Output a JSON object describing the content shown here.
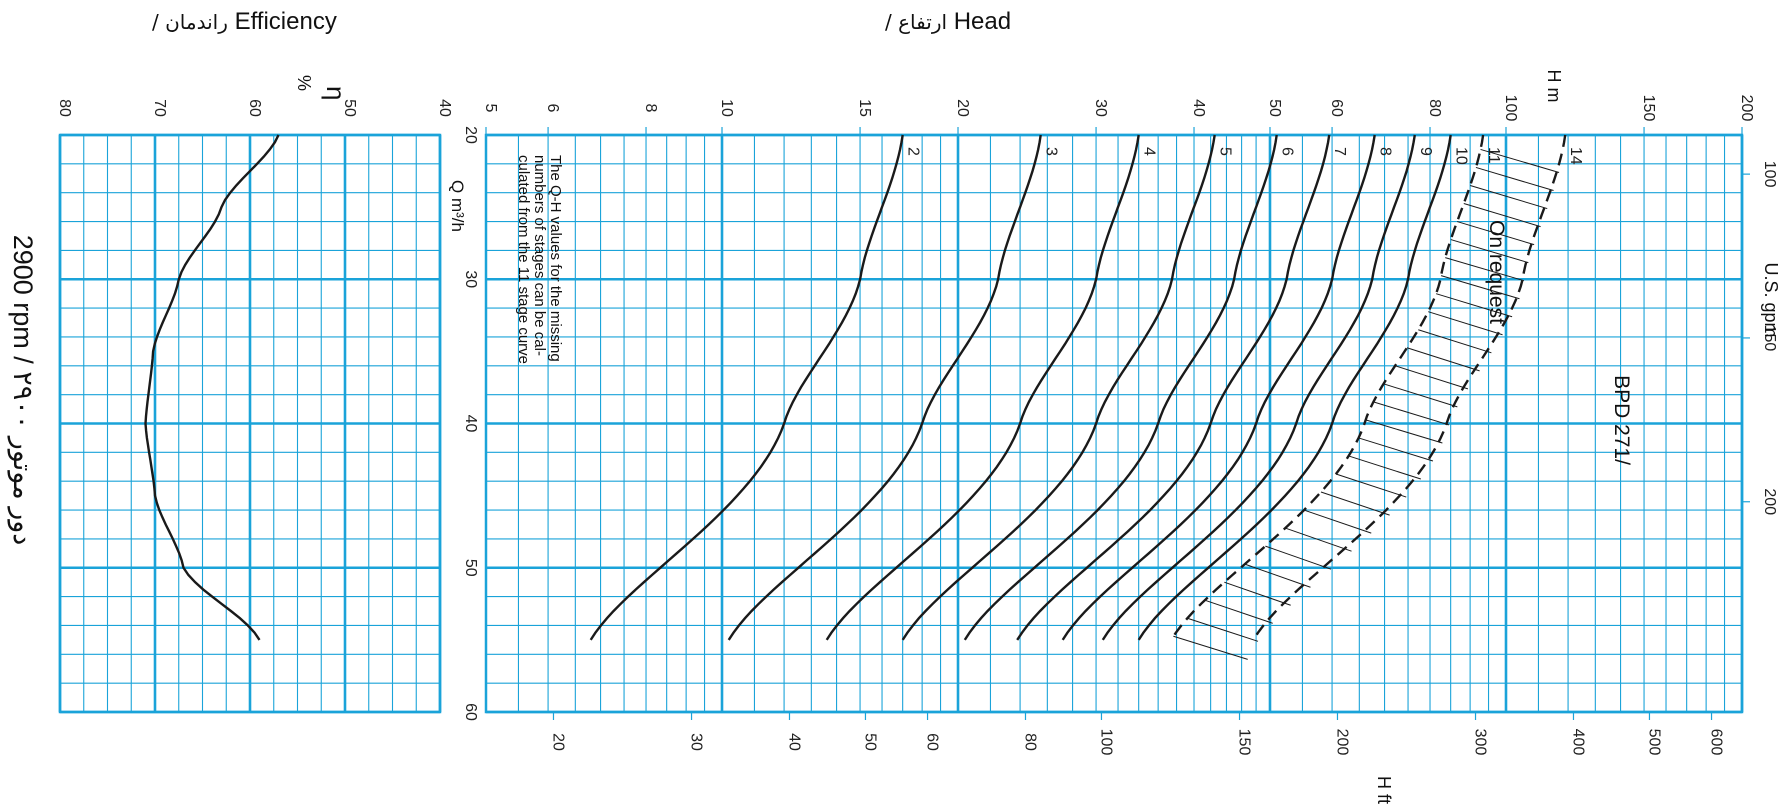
{
  "headers": {
    "head": "Head",
    "head_fa": "/ ارتفاع",
    "efficiency": "Efficiency",
    "efficiency_fa": "/ راندمان",
    "speed": "2900 rpm / ۲۹۰۰ دور موتور"
  },
  "labels": {
    "model": "BPD 271/",
    "q_unit": "Q m³/h",
    "gpm_unit": "U.S. gpm",
    "h_m_axis": "H m",
    "h_ft_axis": "H ft",
    "eta_symbol": "η",
    "eta_unit": "%",
    "on_request": "On request",
    "note": [
      "The Q-H values for the missing",
      "numbers of stages can be cal-",
      "culated from the 11 stage curve"
    ]
  },
  "colors": {
    "grid": "#1aa3d9",
    "curve": "#1a1a1a"
  },
  "chart_data": {
    "type": "line",
    "orientation": "rotated 90° clockwise (flow increases downward, head increases leftward)",
    "x_axis": {
      "label": "Q m³/h",
      "range": [
        20,
        60
      ],
      "ticks": [
        20,
        30,
        40,
        50,
        60
      ]
    },
    "x_axis_secondary": {
      "label": "U.S. gpm",
      "ticks": [
        100,
        150,
        200
      ]
    },
    "y_axis_head_m": {
      "label": "H m",
      "scale": "log",
      "range": [
        5,
        200
      ],
      "ticks": [
        5,
        6,
        8,
        10,
        15,
        20,
        30,
        40,
        50,
        60,
        80,
        100,
        150,
        200
      ]
    },
    "y_axis_head_ft": {
      "label": "H ft",
      "scale": "log",
      "ticks": [
        20,
        30,
        40,
        50,
        60,
        80,
        100,
        150,
        200,
        300,
        400,
        500,
        600
      ]
    },
    "y_axis_efficiency": {
      "label": "η %",
      "range": [
        40,
        80
      ],
      "ticks": [
        40,
        50,
        60,
        70,
        80
      ]
    },
    "stage_curves": [
      {
        "name": "2",
        "q": [
          20,
          30,
          40,
          55
        ],
        "h": [
          17,
          15,
          12,
          6.8
        ]
      },
      {
        "name": "3",
        "q": [
          20,
          30,
          40,
          55
        ],
        "h": [
          25.5,
          22.5,
          18,
          10.2
        ]
      },
      {
        "name": "4",
        "q": [
          20,
          30,
          40,
          55
        ],
        "h": [
          34,
          30,
          24,
          13.6
        ]
      },
      {
        "name": "5",
        "q": [
          20,
          30,
          40,
          55
        ],
        "h": [
          42.5,
          37.5,
          30,
          17
        ]
      },
      {
        "name": "6",
        "q": [
          20,
          30,
          40,
          55
        ],
        "h": [
          51,
          45,
          36,
          20.4
        ]
      },
      {
        "name": "7",
        "q": [
          20,
          30,
          40,
          55
        ],
        "h": [
          59.5,
          52.5,
          42,
          23.8
        ]
      },
      {
        "name": "8",
        "q": [
          20,
          30,
          40,
          55
        ],
        "h": [
          68,
          60,
          48,
          27.2
        ]
      },
      {
        "name": "9",
        "q": [
          20,
          30,
          40,
          55
        ],
        "h": [
          76.5,
          67.5,
          54,
          30.6
        ]
      },
      {
        "name": "10",
        "q": [
          20,
          30,
          40,
          55
        ],
        "h": [
          85,
          75,
          60,
          34
        ]
      }
    ],
    "dashed_curves": [
      {
        "name": "11",
        "q": [
          20,
          30,
          40,
          55
        ],
        "h": [
          93.5,
          82.5,
          66,
          37.4
        ]
      },
      {
        "name": "14",
        "q": [
          20,
          30,
          40,
          55
        ],
        "h": [
          119,
          105,
          84,
          47.6
        ]
      }
    ],
    "efficiency_curve": {
      "q": [
        20,
        25,
        30,
        35,
        40,
        45,
        50,
        55
      ],
      "eta": [
        57,
        63,
        67.5,
        70.2,
        71,
        70,
        67,
        59
      ]
    }
  }
}
